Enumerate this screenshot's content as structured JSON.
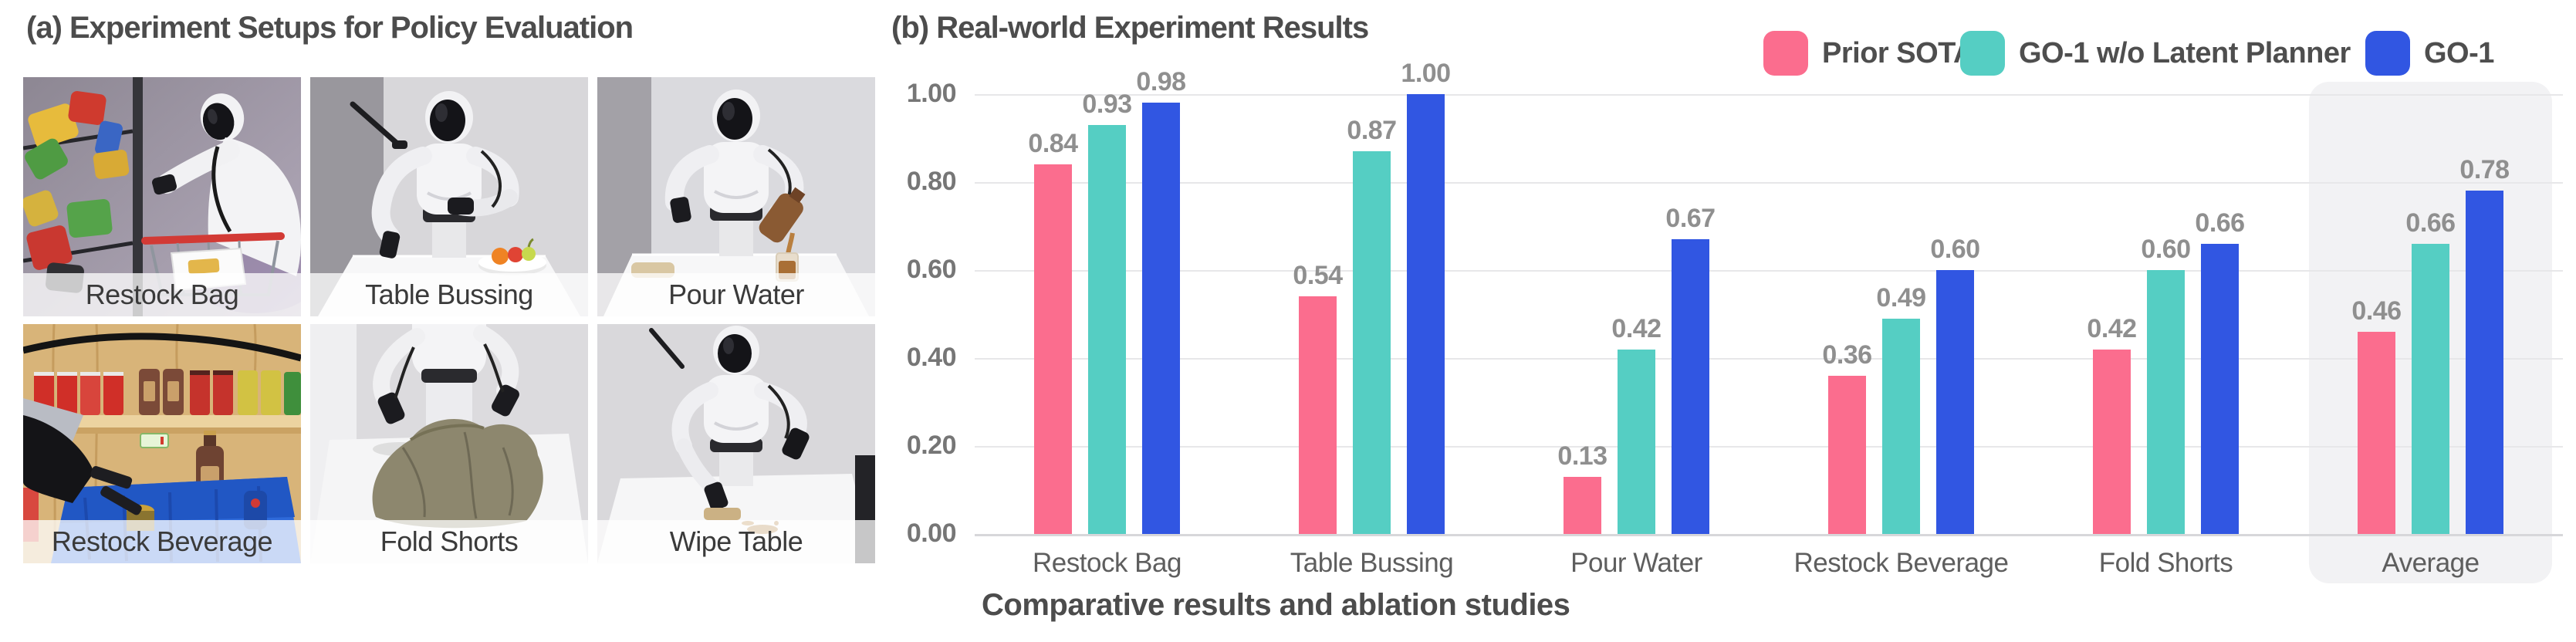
{
  "figure": {
    "panel_a_title": "(a) Experiment Setups for Policy Evaluation",
    "panel_b_title": "(b) Real-world Experiment Results",
    "caption": "Comparative results and ablation studies"
  },
  "setups": {
    "items": [
      {
        "label": "Restock Bag"
      },
      {
        "label": "Table Bussing"
      },
      {
        "label": "Pour Water"
      },
      {
        "label": "Restock Beverage"
      },
      {
        "label": "Fold Shorts"
      },
      {
        "label": "Wipe Table"
      }
    ]
  },
  "chart_data": {
    "type": "bar",
    "title": "(b) Real-world Experiment Results",
    "categories": [
      "Restock Bag",
      "Table Bussing",
      "Pour Water",
      "Restock Beverage",
      "Fold Shorts",
      "Average"
    ],
    "series": [
      {
        "name": "Prior SOTA",
        "color": "#FB6D8E",
        "values": [
          0.84,
          0.54,
          0.13,
          0.36,
          0.42,
          0.46
        ]
      },
      {
        "name": "GO-1 w/o Latent Planner",
        "color": "#55CEC3",
        "values": [
          0.93,
          0.87,
          0.42,
          0.49,
          0.6,
          0.66
        ]
      },
      {
        "name": "GO-1",
        "color": "#3156E2",
        "values": [
          0.98,
          1.0,
          0.67,
          0.6,
          0.66,
          0.78
        ]
      }
    ],
    "xlabel": "",
    "ylabel": "",
    "ylim": [
      0,
      1.0
    ],
    "yticks": [
      "0.00",
      "0.20",
      "0.40",
      "0.60",
      "0.80",
      "1.00"
    ],
    "grid": true,
    "legend_position": "top-right",
    "highlighted_category": "Average",
    "highlight_color": "#f2f2f4",
    "value_labels": "2dp"
  }
}
